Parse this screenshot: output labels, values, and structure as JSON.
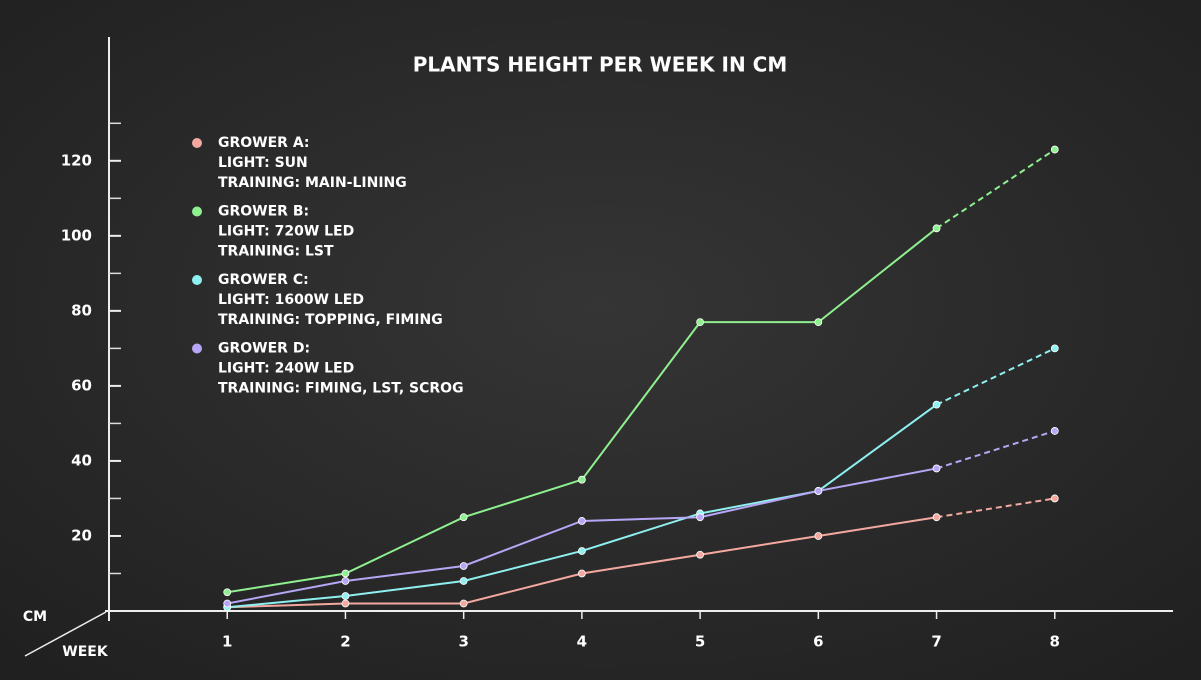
{
  "chart_data": {
    "type": "line",
    "title": "PLANTS HEIGHT PER WEEK IN CM",
    "y_label": "CM",
    "x_label": "WEEK",
    "x": [
      1,
      2,
      3,
      4,
      5,
      6,
      7,
      8
    ],
    "xlim": [
      0,
      9
    ],
    "xticks": [
      1,
      2,
      3,
      4,
      5,
      6,
      7,
      8
    ],
    "ylim": [
      0,
      153
    ],
    "yticks": [
      20,
      40,
      60,
      80,
      100,
      120
    ],
    "yminorticks": [
      10,
      30,
      50,
      70,
      90,
      110,
      130
    ],
    "series": [
      {
        "name": "GROWER A:",
        "light": "LIGHT: SUN",
        "training": "TRAINING: MAIN-LINING",
        "color": "#f4a9a0",
        "values": [
          1,
          2,
          2,
          10,
          15,
          20,
          25,
          30
        ]
      },
      {
        "name": "GROWER B:",
        "light": "LIGHT: 720W LED",
        "training": "TRAINING: LST",
        "color": "#8ef08e",
        "values": [
          5,
          10,
          25,
          35,
          77,
          77,
          102,
          123
        ]
      },
      {
        "name": "GROWER C:",
        "light": "LIGHT: 1600W LED",
        "training": "TRAINING: TOPPING, FIMING",
        "color": "#8ff0f0",
        "values": [
          1,
          4,
          8,
          16,
          26,
          32,
          55,
          70
        ]
      },
      {
        "name": "GROWER D:",
        "light": "LIGHT: 240W LED",
        "training": "TRAINING: FIMING, LST, SCROG",
        "color": "#b7a6f5",
        "values": [
          2,
          8,
          12,
          24,
          25,
          32,
          38,
          48
        ]
      }
    ]
  }
}
